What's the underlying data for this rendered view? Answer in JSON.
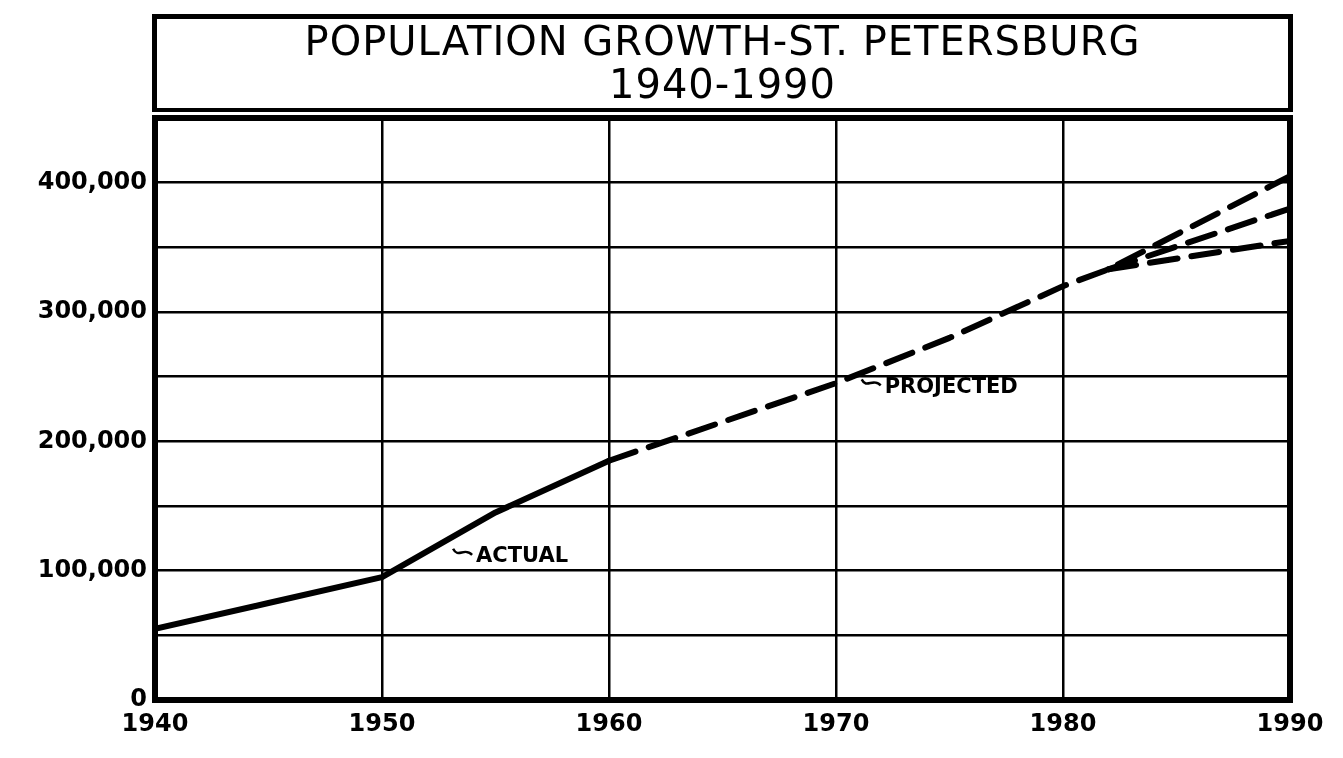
{
  "chart_data": {
    "type": "line",
    "title": "POPULATION GROWTH-ST. PETERSBURG",
    "subtitle": "1940-1990",
    "xlim": [
      1940,
      1990
    ],
    "xticks": [
      1940,
      1950,
      1960,
      1970,
      1980,
      1990
    ],
    "ylim": [
      0,
      450000
    ],
    "yticks": [
      0,
      {
        "value": 50000,
        "label": null
      },
      {
        "value": 100000,
        "label": "100,000"
      },
      {
        "value": 150000,
        "label": null
      },
      {
        "value": 200000,
        "label": "200,000"
      },
      {
        "value": 250000,
        "label": null
      },
      {
        "value": 300000,
        "label": "300,000"
      },
      {
        "value": 350000,
        "label": null
      },
      {
        "value": 400000,
        "label": "400,000"
      }
    ],
    "grid": true,
    "marker": "none",
    "series": [
      {
        "color": "#000000",
        "line_style": "solid",
        "x": [
          1940,
          1945,
          1950,
          1955,
          1960
        ],
        "values": [
          55000,
          75000,
          95000,
          145000,
          185000
        ]
      },
      {
        "color": "#000000",
        "line_style": "dashed",
        "x": [
          1960,
          1965,
          1970,
          1975,
          1980,
          1982,
          1990
        ],
        "values": [
          185000,
          215000,
          245000,
          280000,
          320000,
          333000,
          405000
        ]
      },
      {
        "color": "#000000",
        "line_style": "dashed",
        "x": [
          1982,
          1990
        ],
        "values": [
          333000,
          380000
        ]
      },
      {
        "color": "#000000",
        "line_style": "dashed",
        "x": [
          1982,
          1990
        ],
        "values": [
          333000,
          355000
        ]
      }
    ],
    "annotations": [
      {
        "text": "ACTUAL",
        "x": 1953,
        "y": 120000
      },
      {
        "text": "PROJECTED",
        "x": 1971,
        "y": 251000
      }
    ]
  }
}
